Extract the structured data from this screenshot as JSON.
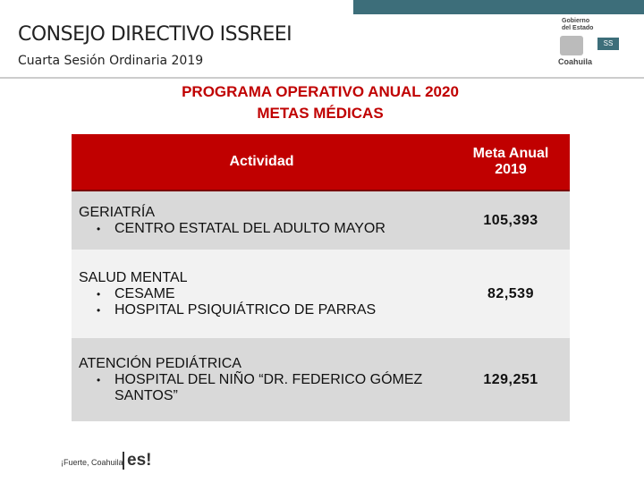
{
  "header": {
    "title": "CONSEJO DIRECTIVO ISSREEI",
    "subtitle": "Cuarta Sesión Ordinaria 2019"
  },
  "logo": {
    "line1": "Gobierno",
    "line2": "del Estado",
    "badge": "SS",
    "state": "Coahuila"
  },
  "heading": {
    "line1": "PROGRAMA OPERATIVO ANUAL 2020",
    "line2": "METAS MÉDICAS"
  },
  "table": {
    "columns": [
      "Actividad",
      "Meta Anual 2019"
    ],
    "rows": [
      {
        "category": "GERIATRÍA",
        "items": [
          "CENTRO ESTATAL DEL ADULTO MAYOR"
        ],
        "value": "105,393"
      },
      {
        "category": "SALUD MENTAL",
        "items": [
          "CESAME",
          "HOSPITAL PSIQUIÁTRICO DE PARRAS"
        ],
        "value": "82,539"
      },
      {
        "category": "ATENCIÓN PEDIÁTRICA",
        "items": [
          "HOSPITAL DEL NIÑO “DR. FEDERICO GÓMEZ SANTOS”"
        ],
        "value": "129,251"
      }
    ]
  },
  "footer": {
    "slogan": "¡Fuerte, Coahuila",
    "mark": "es!"
  }
}
